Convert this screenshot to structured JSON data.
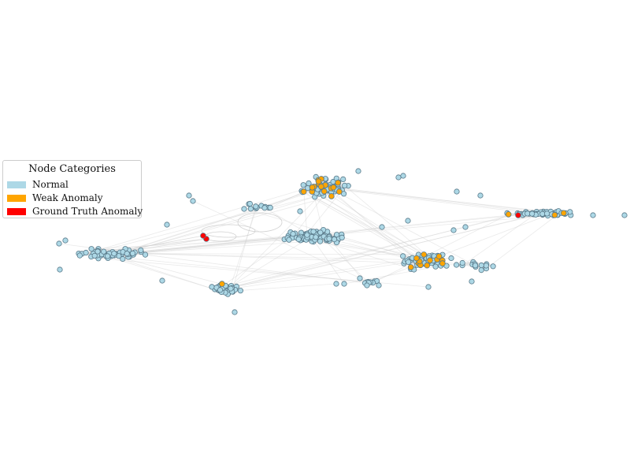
{
  "legend": {
    "title": "Node Categories",
    "items": [
      {
        "label": "Normal",
        "color": "#add8e6"
      },
      {
        "label": "Weak Anomaly",
        "color": "#ffa500"
      },
      {
        "label": "Ground Truth Anomaly",
        "color": "#ff0000"
      }
    ]
  },
  "colors": {
    "normal_node": "#add8e6",
    "weak_anomaly_node": "#ffa500",
    "ground_truth_anomaly_node": "#ff0000",
    "node_outline": "#5a7a8a",
    "edge": "#d0d0d0"
  }
}
